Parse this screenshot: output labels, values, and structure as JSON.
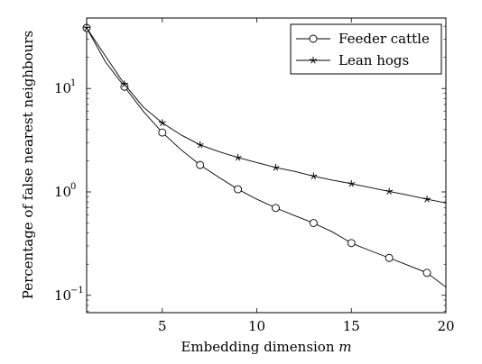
{
  "chart_data": {
    "type": "line",
    "xlabel": "Embedding dimension",
    "xlabel_var": "m",
    "ylabel": "Percentage of false nearest neighbours",
    "xlim": [
      1,
      20
    ],
    "ylim": [
      0.068,
      48
    ],
    "yscale": "log",
    "xticks": [
      5,
      10,
      15,
      20
    ],
    "yticks": [
      {
        "base": "10",
        "exp": "1",
        "value": 10
      },
      {
        "base": "10",
        "exp": "0",
        "value": 1
      },
      {
        "base": "10",
        "exp": "−1",
        "value": 0.1
      }
    ],
    "legend_position": "top-right",
    "series": [
      {
        "name": "Feeder cattle",
        "marker": "circle",
        "color": "#000000",
        "x": [
          1,
          2,
          3,
          4,
          5,
          6,
          7,
          8,
          9,
          10,
          11,
          12,
          13,
          14,
          15,
          16,
          17,
          18,
          19,
          20
        ],
        "y": [
          38.5,
          18.0,
          10.4,
          6.0,
          3.75,
          2.55,
          1.82,
          1.38,
          1.06,
          0.85,
          0.7,
          0.59,
          0.5,
          0.41,
          0.32,
          0.27,
          0.23,
          0.195,
          0.165,
          0.12
        ],
        "marked": [
          1,
          3,
          5,
          7,
          9,
          11,
          13,
          15,
          17,
          19
        ]
      },
      {
        "name": "Lean hogs",
        "marker": "star",
        "color": "#000000",
        "x": [
          1,
          2,
          3,
          4,
          5,
          6,
          7,
          8,
          9,
          10,
          11,
          12,
          13,
          14,
          15,
          16,
          17,
          18,
          19,
          20
        ],
        "y": [
          38.5,
          20.5,
          11.0,
          6.6,
          4.65,
          3.55,
          2.85,
          2.45,
          2.15,
          1.92,
          1.72,
          1.58,
          1.42,
          1.3,
          1.2,
          1.1,
          1.01,
          0.93,
          0.85,
          0.78
        ],
        "marked": [
          1,
          3,
          5,
          7,
          9,
          11,
          13,
          15,
          17,
          19
        ]
      }
    ]
  }
}
